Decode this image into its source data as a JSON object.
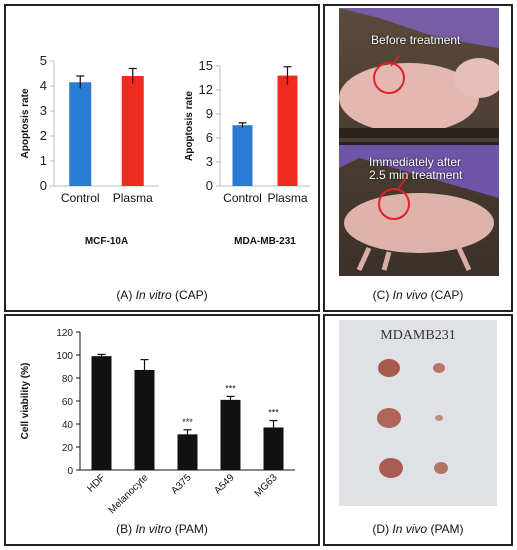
{
  "chart_data": [
    {
      "type": "bar",
      "panel": "A",
      "ylabel": "Apoptosis rate",
      "categories": [
        "Control",
        "Plasma"
      ],
      "values": [
        4.15,
        4.4
      ],
      "errors": [
        0.25,
        0.3
      ],
      "colors": [
        "#2a7bd4",
        "#ee2b1e"
      ],
      "ylim": [
        0,
        5
      ],
      "yticks": [
        0,
        1,
        2,
        3,
        4,
        5
      ],
      "xlabel": "MCF-10A"
    },
    {
      "type": "bar",
      "panel": "A",
      "ylabel": "Apoptosis rate",
      "categories": [
        "Control",
        "Plasma"
      ],
      "values": [
        7.6,
        13.8
      ],
      "errors": [
        0.3,
        1.1
      ],
      "colors": [
        "#2a7bd4",
        "#ee2b1e"
      ],
      "ylim": [
        0,
        15
      ],
      "yticks": [
        0,
        3,
        6,
        9,
        12,
        15
      ],
      "xlabel": "MDA-MB-231"
    },
    {
      "type": "bar",
      "panel": "B",
      "ylabel": "Cell viability (%)",
      "categories": [
        "HDF",
        "Melanocyte",
        "A375",
        "A549",
        "MG63"
      ],
      "values": [
        99,
        87,
        31,
        61,
        37
      ],
      "errors": [
        1.5,
        9,
        4,
        3,
        6
      ],
      "significance": [
        "",
        "",
        "***",
        "***",
        "***"
      ],
      "colors": [
        "#111111"
      ],
      "ylim": [
        0,
        120
      ],
      "yticks": [
        0,
        20,
        40,
        60,
        80,
        100,
        120
      ]
    }
  ],
  "captions": {
    "a_prefix": "(A) ",
    "a_italic": "In vitro",
    "a_suffix": " (CAP)",
    "b_prefix": "(B) ",
    "b_italic": "In vitro",
    "b_suffix": " (PAM)",
    "c_prefix": "(C) ",
    "c_italic": "In vivo",
    "c_suffix": " (CAP)",
    "d_prefix": "(D) ",
    "d_italic": "In vivo",
    "d_suffix": " (PAM)"
  },
  "photo_c": {
    "top_label": "Before treatment",
    "bottom_label_line1": "Immediately after",
    "bottom_label_line2": "2.5 min treatment"
  },
  "photo_d": {
    "label": "MDAMB231"
  }
}
